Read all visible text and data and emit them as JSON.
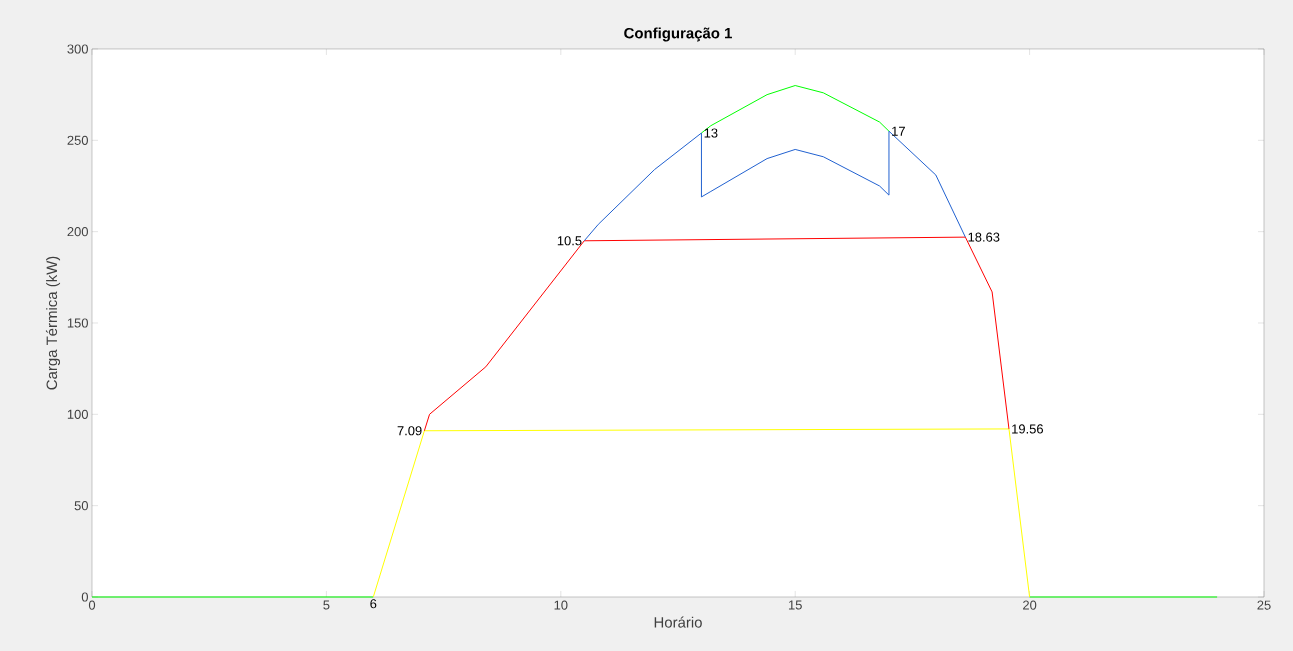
{
  "chart_data": {
    "type": "line",
    "title": "Configuração 1",
    "xlabel": "Horário",
    "ylabel": "Carga Térmica (kW)",
    "xlim": [
      0,
      25
    ],
    "xticks": [
      0,
      5,
      10,
      15,
      20,
      25
    ],
    "ylim": [
      0,
      300
    ],
    "yticks": [
      0,
      50,
      100,
      150,
      200,
      250,
      300
    ],
    "series": [
      {
        "color": "#00ff00",
        "x": [
          0,
          6
        ],
        "values": [
          0,
          0
        ]
      },
      {
        "color": "#00ff00",
        "x": [
          20,
          24
        ],
        "values": [
          0,
          0
        ]
      },
      {
        "color": "#ffff00",
        "x": [
          6,
          7.09,
          19.56,
          20
        ],
        "values": [
          0,
          91,
          92,
          0
        ]
      },
      {
        "color": "#ff0000",
        "x": [
          7.09,
          7.2,
          8.4,
          10.5,
          18.63,
          19.2,
          19.56
        ],
        "values": [
          91,
          100,
          126,
          195,
          197,
          167,
          92
        ]
      },
      {
        "color": "#2060d0",
        "x": [
          10.5,
          10.8,
          12,
          13,
          13,
          13.2,
          14.4,
          15,
          15.6,
          16.8,
          17,
          17,
          18,
          18.63
        ],
        "values": [
          195,
          204,
          234,
          254,
          219,
          222,
          240,
          245,
          241,
          225,
          220,
          255,
          231,
          197
        ]
      },
      {
        "color": "#00ff00",
        "x": [
          13,
          13.2,
          14.4,
          15,
          15.6,
          16.8,
          17
        ],
        "values": [
          254,
          258,
          275,
          280,
          276,
          260,
          255
        ]
      }
    ],
    "annotations": [
      {
        "text": "6",
        "x": 6,
        "y": 0
      },
      {
        "text": "7.09",
        "x": 7.09,
        "y": 91
      },
      {
        "text": "10.5",
        "x": 10.5,
        "y": 195
      },
      {
        "text": "13",
        "x": 13,
        "y": 254
      },
      {
        "text": "17",
        "x": 17,
        "y": 255
      },
      {
        "text": "18.63",
        "x": 18.63,
        "y": 197
      },
      {
        "text": "19.56",
        "x": 19.56,
        "y": 92
      }
    ]
  }
}
